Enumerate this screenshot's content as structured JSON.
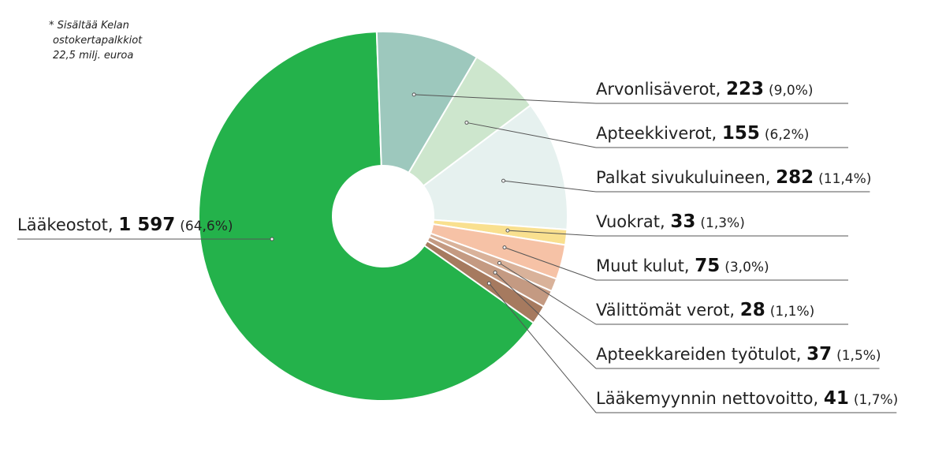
{
  "chart_data": {
    "type": "pie",
    "note_lines": [
      "* Sisältää Kelan",
      "ostokertapalkkiot",
      "22,5 milj. euroa"
    ],
    "slices": [
      {
        "label": "Lääkeostot,",
        "value": 1597,
        "value_text": "1 597",
        "percent_text": "(64,6%)",
        "color": "#24b24b"
      },
      {
        "label": "Arvonlisäverot,",
        "value": 223,
        "value_text": "223",
        "percent_text": "(9,0%)",
        "color": "#9dc8bd"
      },
      {
        "label": "Apteekkiverot,",
        "value": 155,
        "value_text": "155",
        "percent_text": "(6,2%)",
        "color": "#cde6cd"
      },
      {
        "label": "Palkat sivukuluineen,",
        "value": 282,
        "value_text": "282",
        "percent_text": "(11,4%)",
        "color": "#e6f1ef"
      },
      {
        "label": "Vuokrat,",
        "value": 33,
        "value_text": "33",
        "percent_text": "(1,3%)",
        "color": "#f9e08f"
      },
      {
        "label": "Muut kulut,",
        "value": 75,
        "value_text": "75",
        "percent_text": "(3,0%)",
        "color": "#f6c2a6"
      },
      {
        "label": "Välittömät verot,",
        "value": 28,
        "value_text": "28",
        "percent_text": "(1,1%)",
        "color": "#d9b29a"
      },
      {
        "label": "Apteekkareiden työtulot,",
        "value": 37,
        "value_text": "37",
        "percent_text": "(1,5%)",
        "color": "#c49a82"
      },
      {
        "label": "Lääkemyynnin nettovoitto,",
        "value": 41,
        "value_text": "41",
        "percent_text": "(1,7%)",
        "color": "#a67a5f"
      }
    ]
  }
}
